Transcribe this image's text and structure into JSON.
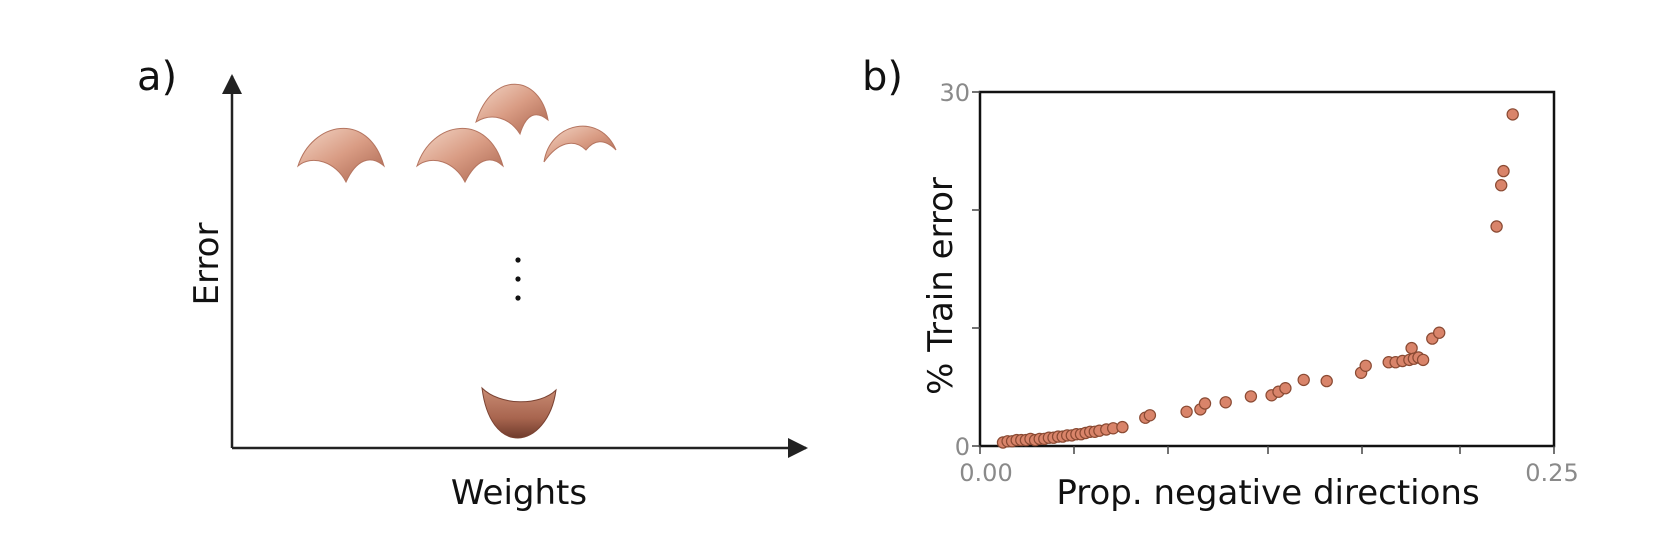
{
  "panel_a": {
    "label": "a)",
    "xlabel": "Weights",
    "ylabel": "Error"
  },
  "panel_b": {
    "label": "b)"
  },
  "chart_data": {
    "type": "scatter",
    "xlabel": "Prop. negative directions",
    "ylabel": "% Train error",
    "xlim": [
      0,
      0.25
    ],
    "ylim": [
      0,
      30
    ],
    "x_tick_labels": [
      "0.00",
      "0.25"
    ],
    "y_tick_labels": [
      "0",
      "30"
    ],
    "marker_color": "#d9846a",
    "marker_edge": "#8a4a33",
    "points": [
      [
        0.01,
        0.3
      ],
      [
        0.012,
        0.4
      ],
      [
        0.014,
        0.4
      ],
      [
        0.016,
        0.5
      ],
      [
        0.018,
        0.5
      ],
      [
        0.02,
        0.5
      ],
      [
        0.022,
        0.6
      ],
      [
        0.024,
        0.5
      ],
      [
        0.026,
        0.6
      ],
      [
        0.028,
        0.6
      ],
      [
        0.03,
        0.7
      ],
      [
        0.032,
        0.7
      ],
      [
        0.034,
        0.8
      ],
      [
        0.036,
        0.8
      ],
      [
        0.038,
        0.9
      ],
      [
        0.04,
        0.9
      ],
      [
        0.042,
        1.0
      ],
      [
        0.044,
        1.0
      ],
      [
        0.046,
        1.1
      ],
      [
        0.048,
        1.2
      ],
      [
        0.05,
        1.2
      ],
      [
        0.052,
        1.3
      ],
      [
        0.055,
        1.4
      ],
      [
        0.058,
        1.5
      ],
      [
        0.062,
        1.6
      ],
      [
        0.072,
        2.4
      ],
      [
        0.074,
        2.6
      ],
      [
        0.09,
        2.9
      ],
      [
        0.096,
        3.1
      ],
      [
        0.098,
        3.6
      ],
      [
        0.107,
        3.7
      ],
      [
        0.118,
        4.2
      ],
      [
        0.127,
        4.3
      ],
      [
        0.13,
        4.6
      ],
      [
        0.133,
        4.9
      ],
      [
        0.141,
        5.6
      ],
      [
        0.151,
        5.5
      ],
      [
        0.166,
        6.2
      ],
      [
        0.168,
        6.8
      ],
      [
        0.178,
        7.1
      ],
      [
        0.181,
        7.1
      ],
      [
        0.184,
        7.2
      ],
      [
        0.187,
        7.3
      ],
      [
        0.188,
        8.3
      ],
      [
        0.189,
        7.4
      ],
      [
        0.191,
        7.5
      ],
      [
        0.193,
        7.3
      ],
      [
        0.197,
        9.1
      ],
      [
        0.2,
        9.6
      ],
      [
        0.225,
        18.6
      ],
      [
        0.227,
        22.1
      ],
      [
        0.228,
        23.3
      ],
      [
        0.232,
        28.1
      ]
    ]
  }
}
